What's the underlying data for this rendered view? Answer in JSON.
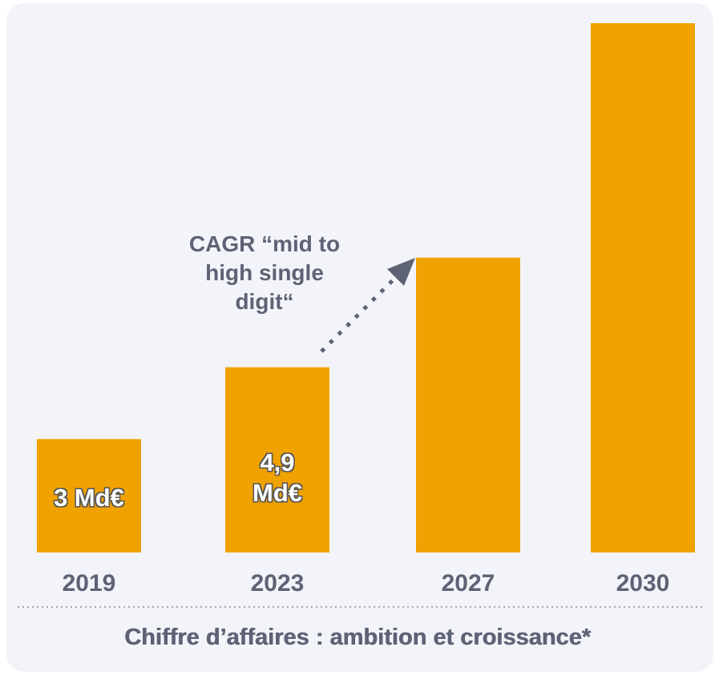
{
  "chart_data": {
    "type": "bar",
    "title": "Chiffre d’affaires : ambition et croissance*",
    "categories": [
      "2019",
      "2023",
      "2027",
      "2030"
    ],
    "values": [
      3,
      4.9,
      7.8,
      14
    ],
    "value_labels": [
      "3 Md€",
      "4,9 Md€",
      null,
      null
    ],
    "color": "#f0a200",
    "ylim": [
      0,
      14
    ],
    "annotation": "CAGR “mid to high single digit“"
  }
}
